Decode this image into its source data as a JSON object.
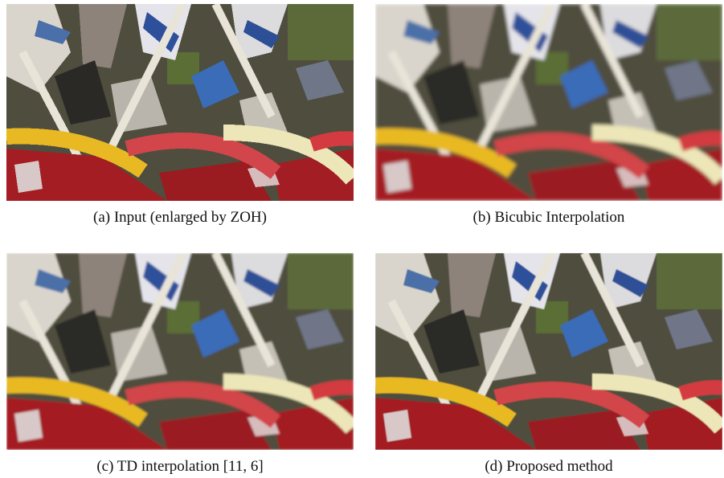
{
  "figure": {
    "panels": [
      {
        "caption": "(a) Input (enlarged by ZOH)"
      },
      {
        "caption": "(b) Bicubic Interpolation"
      },
      {
        "caption": "(c) TD interpolation [11, 6]"
      },
      {
        "caption": "(d) Proposed method"
      }
    ]
  }
}
